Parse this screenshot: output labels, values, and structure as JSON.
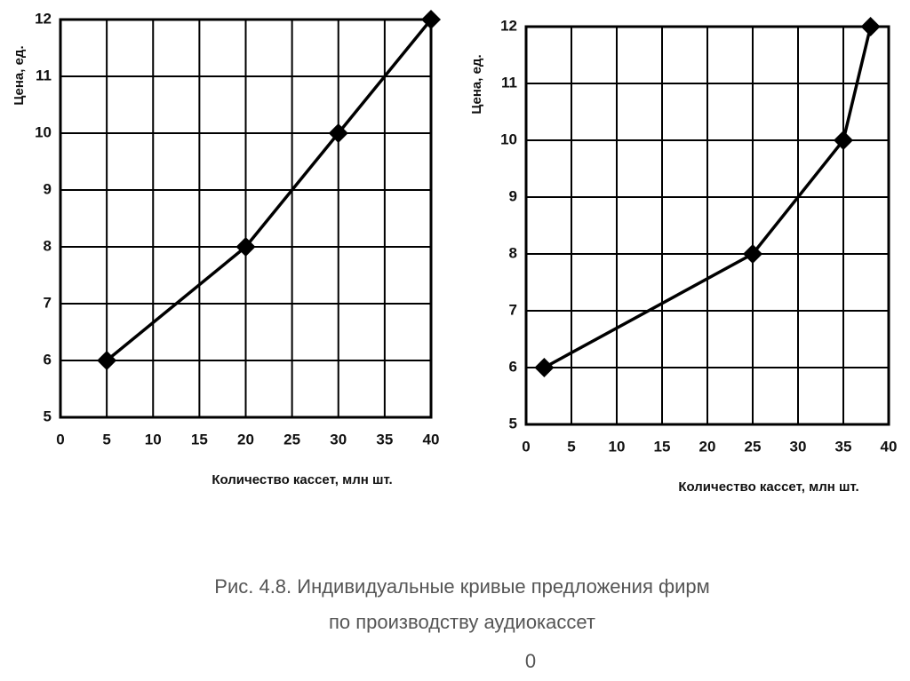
{
  "chart_data": [
    {
      "type": "line",
      "y_label": "Цена, ед.",
      "x_label": "Количество кассет, млн шт.",
      "x": [
        5,
        20,
        30,
        40
      ],
      "values": [
        6,
        8,
        10,
        12
      ],
      "color": "#000000",
      "xlim": [
        0,
        40
      ],
      "ylim": [
        5,
        12
      ],
      "xticks": [
        0,
        5,
        10,
        15,
        20,
        25,
        30,
        35,
        40
      ],
      "yticks": [
        5,
        6,
        7,
        8,
        9,
        10,
        11,
        12
      ],
      "grid": true,
      "marker": "diamond"
    },
    {
      "type": "line",
      "y_label": "Цена, ед.",
      "x_label": "Количество кассет, млн шт.",
      "x": [
        2,
        25,
        35,
        38
      ],
      "values": [
        6,
        8,
        10,
        12
      ],
      "color": "#000000",
      "xlim": [
        0,
        40
      ],
      "ylim": [
        5,
        12
      ],
      "xticks": [
        0,
        5,
        10,
        15,
        20,
        25,
        30,
        35,
        40
      ],
      "yticks": [
        5,
        6,
        7,
        8,
        9,
        10,
        11,
        12
      ],
      "grid": true,
      "marker": "diamond"
    }
  ],
  "caption": [
    "Рис. 4.8. Индивидуальные кривые предложения фирм",
    "по производству аудиокассет",
    "0"
  ]
}
